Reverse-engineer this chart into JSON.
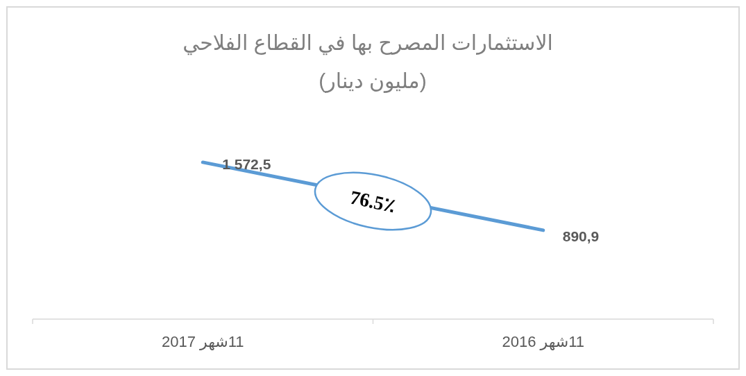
{
  "chart_data": {
    "type": "line",
    "title": "الاستثمارات المصرح بها في القطاع الفلاحي",
    "subtitle": "(مليون دينار)",
    "categories": [
      "11شهر 2017",
      "11شهر 2016"
    ],
    "series": [
      {
        "color": "#5b9bd5",
        "values": [
          1572.5,
          890.9
        ],
        "value_labels": [
          "1 572,5",
          "890,9"
        ]
      }
    ],
    "annotations": [
      "76.5٪"
    ],
    "marker": "none",
    "grid": false
  }
}
